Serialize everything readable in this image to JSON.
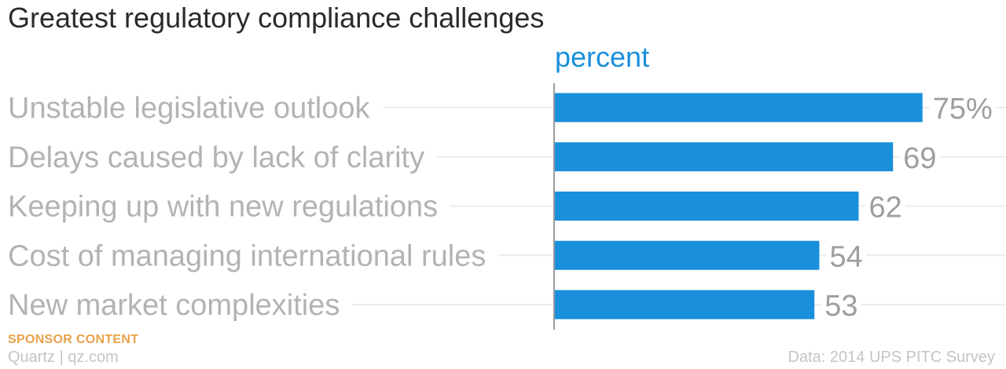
{
  "title": "Greatest regulatory compliance challenges",
  "chart_data": {
    "type": "bar",
    "orientation": "horizontal",
    "axis_label": "percent",
    "categories": [
      "Unstable legislative outlook",
      "Delays caused by lack of clarity",
      "Keeping up with new regulations",
      "Cost of managing international rules",
      "New market complexities"
    ],
    "values": [
      75,
      69,
      62,
      54,
      53
    ],
    "value_labels": [
      "75%",
      "69",
      "62",
      "54",
      "53"
    ],
    "xlim": [
      0,
      100
    ],
    "grid": true,
    "bar_color": "#1a8fdb"
  },
  "footer": {
    "sponsor": "SPONSOR CONTENT",
    "brand": "Quartz | qz.com",
    "source": "Data: 2014 UPS PITC Survey"
  }
}
